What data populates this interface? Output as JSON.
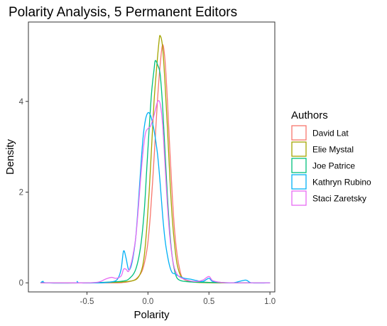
{
  "chart_data": {
    "type": "line",
    "title": "Polarity Analysis, 5 Permanent Editors",
    "xlabel": "Polarity",
    "ylabel": "Density",
    "xlim": [
      -0.98,
      1.04
    ],
    "ylim": [
      -0.2,
      5.75
    ],
    "x_ticks": [
      -0.5,
      0.0,
      0.5,
      1.0
    ],
    "x_tick_labels": [
      "-0.5",
      "0.0",
      "0.5",
      "1.0"
    ],
    "y_ticks": [
      0,
      2,
      4
    ],
    "y_tick_labels": [
      "0",
      "2",
      "4"
    ],
    "grid": false,
    "legend_title": "Authors",
    "legend_position": "right",
    "series": [
      {
        "name": "David Lat",
        "color": "#F8766D",
        "points": [
          [
            -0.88,
            0
          ],
          [
            -0.3,
            0
          ],
          [
            -0.2,
            0.01
          ],
          [
            -0.15,
            0.03
          ],
          [
            -0.1,
            0.08
          ],
          [
            -0.05,
            0.25
          ],
          [
            -0.02,
            0.55
          ],
          [
            0.0,
            0.9
          ],
          [
            0.02,
            1.5
          ],
          [
            0.04,
            2.3
          ],
          [
            0.06,
            3.2
          ],
          [
            0.08,
            4.1
          ],
          [
            0.1,
            4.8
          ],
          [
            0.12,
            5.25
          ],
          [
            0.14,
            4.9
          ],
          [
            0.16,
            4.0
          ],
          [
            0.18,
            2.9
          ],
          [
            0.2,
            1.9
          ],
          [
            0.22,
            1.1
          ],
          [
            0.24,
            0.6
          ],
          [
            0.26,
            0.3
          ],
          [
            0.28,
            0.12
          ],
          [
            0.32,
            0.05
          ],
          [
            0.4,
            0.02
          ],
          [
            0.5,
            0.01
          ],
          [
            0.6,
            0
          ],
          [
            1.0,
            0
          ]
        ]
      },
      {
        "name": "Elie Mystal",
        "color": "#A3A500",
        "points": [
          [
            -0.88,
            0
          ],
          [
            -0.5,
            0
          ],
          [
            -0.3,
            0.01
          ],
          [
            -0.2,
            0.02
          ],
          [
            -0.12,
            0.05
          ],
          [
            -0.08,
            0.12
          ],
          [
            -0.05,
            0.3
          ],
          [
            -0.03,
            0.6
          ],
          [
            -0.01,
            1.2
          ],
          [
            0.01,
            2.0
          ],
          [
            0.03,
            3.0
          ],
          [
            0.05,
            4.0
          ],
          [
            0.07,
            4.7
          ],
          [
            0.09,
            5.3
          ],
          [
            0.1,
            5.45
          ],
          [
            0.12,
            5.2
          ],
          [
            0.14,
            4.4
          ],
          [
            0.16,
            3.4
          ],
          [
            0.18,
            2.3
          ],
          [
            0.2,
            1.4
          ],
          [
            0.22,
            0.8
          ],
          [
            0.24,
            0.4
          ],
          [
            0.27,
            0.15
          ],
          [
            0.32,
            0.05
          ],
          [
            0.4,
            0.01
          ],
          [
            0.6,
            0
          ],
          [
            1.0,
            0
          ]
        ]
      },
      {
        "name": "Joe Patrice",
        "color": "#00BF7D",
        "points": [
          [
            -0.88,
            0
          ],
          [
            -0.86,
            0.03
          ],
          [
            -0.83,
            0
          ],
          [
            -0.5,
            0
          ],
          [
            -0.3,
            0.02
          ],
          [
            -0.2,
            0.04
          ],
          [
            -0.15,
            0.1
          ],
          [
            -0.1,
            0.3
          ],
          [
            -0.06,
            0.8
          ],
          [
            -0.03,
            1.6
          ],
          [
            -0.01,
            2.5
          ],
          [
            0.01,
            3.4
          ],
          [
            0.03,
            4.2
          ],
          [
            0.05,
            4.7
          ],
          [
            0.06,
            4.9
          ],
          [
            0.08,
            4.8
          ],
          [
            0.1,
            4.6
          ],
          [
            0.12,
            3.9
          ],
          [
            0.14,
            2.9
          ],
          [
            0.16,
            1.9
          ],
          [
            0.18,
            1.1
          ],
          [
            0.2,
            0.55
          ],
          [
            0.22,
            0.25
          ],
          [
            0.24,
            0.1
          ],
          [
            0.28,
            0.04
          ],
          [
            0.35,
            0.02
          ],
          [
            0.5,
            0.01
          ],
          [
            0.7,
            0
          ],
          [
            1.0,
            0
          ]
        ]
      },
      {
        "name": "Kathryn Rubino",
        "color": "#00B0F6",
        "points": [
          [
            -0.88,
            0
          ],
          [
            -0.86,
            0.03
          ],
          [
            -0.83,
            0
          ],
          [
            -0.6,
            0
          ],
          [
            -0.58,
            0.03
          ],
          [
            -0.56,
            0
          ],
          [
            -0.4,
            0
          ],
          [
            -0.3,
            0.02
          ],
          [
            -0.25,
            0.08
          ],
          [
            -0.22,
            0.3
          ],
          [
            -0.2,
            0.7
          ],
          [
            -0.18,
            0.55
          ],
          [
            -0.16,
            0.3
          ],
          [
            -0.14,
            0.35
          ],
          [
            -0.12,
            0.6
          ],
          [
            -0.1,
            1.0
          ],
          [
            -0.08,
            1.7
          ],
          [
            -0.06,
            2.5
          ],
          [
            -0.04,
            3.2
          ],
          [
            -0.02,
            3.6
          ],
          [
            0.0,
            3.75
          ],
          [
            0.02,
            3.7
          ],
          [
            0.04,
            3.5
          ],
          [
            0.06,
            3.2
          ],
          [
            0.08,
            2.8
          ],
          [
            0.1,
            2.2
          ],
          [
            0.12,
            1.5
          ],
          [
            0.14,
            0.95
          ],
          [
            0.16,
            0.6
          ],
          [
            0.18,
            0.35
          ],
          [
            0.2,
            0.22
          ],
          [
            0.22,
            0.2
          ],
          [
            0.25,
            0.15
          ],
          [
            0.3,
            0.1
          ],
          [
            0.35,
            0.08
          ],
          [
            0.4,
            0.05
          ],
          [
            0.45,
            0.03
          ],
          [
            0.5,
            0.1
          ],
          [
            0.53,
            0.03
          ],
          [
            0.6,
            0.01
          ],
          [
            0.7,
            0
          ],
          [
            0.8,
            0.06
          ],
          [
            0.85,
            0
          ],
          [
            1.0,
            0
          ]
        ]
      },
      {
        "name": "Staci Zaretsky",
        "color": "#E76BF3",
        "points": [
          [
            -0.88,
            0
          ],
          [
            -0.5,
            0
          ],
          [
            -0.4,
            0.02
          ],
          [
            -0.35,
            0.08
          ],
          [
            -0.3,
            0.12
          ],
          [
            -0.26,
            0.1
          ],
          [
            -0.22,
            0.15
          ],
          [
            -0.2,
            0.3
          ],
          [
            -0.18,
            0.3
          ],
          [
            -0.16,
            0.25
          ],
          [
            -0.14,
            0.4
          ],
          [
            -0.12,
            0.65
          ],
          [
            -0.1,
            1.0
          ],
          [
            -0.08,
            1.6
          ],
          [
            -0.06,
            2.3
          ],
          [
            -0.04,
            2.9
          ],
          [
            -0.02,
            3.3
          ],
          [
            0.0,
            3.4
          ],
          [
            0.02,
            3.45
          ],
          [
            0.04,
            3.6
          ],
          [
            0.06,
            3.8
          ],
          [
            0.08,
            4.0
          ],
          [
            0.1,
            3.95
          ],
          [
            0.12,
            3.5
          ],
          [
            0.14,
            2.6
          ],
          [
            0.16,
            1.7
          ],
          [
            0.18,
            1.0
          ],
          [
            0.2,
            0.55
          ],
          [
            0.22,
            0.3
          ],
          [
            0.25,
            0.15
          ],
          [
            0.3,
            0.08
          ],
          [
            0.35,
            0.04
          ],
          [
            0.4,
            0.03
          ],
          [
            0.45,
            0.06
          ],
          [
            0.5,
            0.14
          ],
          [
            0.53,
            0.05
          ],
          [
            0.6,
            0.01
          ],
          [
            0.7,
            0
          ],
          [
            1.0,
            0
          ]
        ]
      }
    ]
  }
}
